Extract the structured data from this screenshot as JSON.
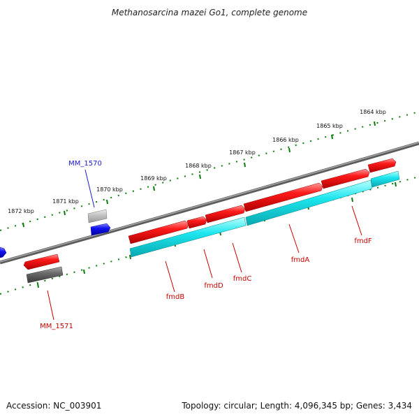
{
  "title": "Methanosarcina mazei Go1, complete genome",
  "footer": {
    "accession": "Accession: NC_003901",
    "summary": "Topology: circular; Length: 4,096,345 bp; Genes: 3,434"
  },
  "colors": {
    "forward_gene": "#ee1111",
    "cds": "#11e0e8",
    "other_gene": "#666666",
    "pseudo_gene": "#bbbbbb",
    "reverse_gene": "#1111ee",
    "tick": "#0a7a0a",
    "backbone": "#808080",
    "label_red": "#cc0000",
    "label_blue": "#1a1acc"
  },
  "kbp_labels": [
    "1872 kbp",
    "1871 kbp",
    "1870 kbp",
    "1869 kbp",
    "1868 kbp",
    "1867 kbp",
    "1866 kbp",
    "1865 kbp",
    "1864 kbp"
  ],
  "genes": [
    {
      "name": "MM_1570",
      "color": "blue"
    },
    {
      "name": "MM_1571",
      "color": "red"
    },
    {
      "name": "fmdB",
      "color": "red"
    },
    {
      "name": "fmdD",
      "color": "red"
    },
    {
      "name": "fmdC",
      "color": "red"
    },
    {
      "name": "fmdA",
      "color": "red"
    },
    {
      "name": "fmdF",
      "color": "red"
    }
  ]
}
